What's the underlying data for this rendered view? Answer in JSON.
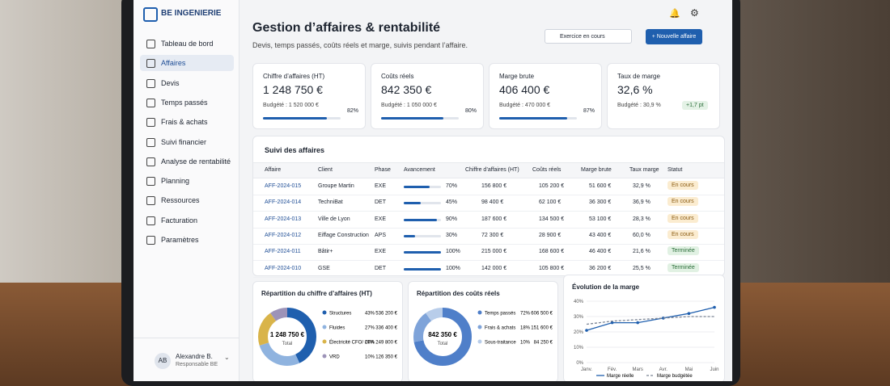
{
  "sidebar": {
    "brand": "BE INGENIERIE",
    "nav": [
      "Tableau de bord",
      "Affaires",
      "Devis",
      "Temps passés",
      "Frais & achats",
      "Suivi financier",
      "Analyse de rentabilité",
      "Planning",
      "Ressources",
      "Facturation",
      "Paramètres"
    ],
    "active": 1,
    "user": {
      "initials": "AB",
      "name": "Alexandre B.",
      "role": "Responsable BE"
    }
  },
  "header": {
    "title": "Gestion d’affaires & rentabilité",
    "subtitle": "Devis, temps passés, coûts réels et marge, suivis pendant l’affaire.",
    "select": "Exercice en cours",
    "button": "Nouvelle affaire"
  },
  "kpis": [
    {
      "label": "Chiffre d’affaires (HT)",
      "value": "1 248 750 €",
      "budget": "Budgété : 1 520 000 €",
      "progress": 82,
      "progress_label": "82%"
    },
    {
      "label": "Coûts réels",
      "value": "842 350 €",
      "budget": "Budgété : 1 050 000 €",
      "progress": 80,
      "progress_label": "80%"
    },
    {
      "label": "Marge brute",
      "value": "406 400 €",
      "budget": "Budgété : 470 000 €",
      "progress": 87,
      "progress_label": "87%"
    },
    {
      "label": "Taux de marge",
      "value": "32,6 %",
      "budget": "Budgété : 30,9 %",
      "badge": "+1,7 pt"
    }
  ],
  "table": {
    "title": "Suivi des affaires",
    "columns": [
      "Affaire",
      "Client",
      "Phase",
      "Avancement",
      "Chiffre d’affaires (HT)",
      "Coûts réels",
      "Marge brute",
      "Taux marge",
      "Statut"
    ],
    "rows": [
      {
        "id": "AFF-2024-015",
        "client": "Groupe Martin",
        "phase": "EXE",
        "progress": 70,
        "progress_label": "70%",
        "ca": "156 800 €",
        "costs": "105 200 €",
        "margin": "51 600 €",
        "rate": "32,9 %",
        "status": "En cours"
      },
      {
        "id": "AFF-2024-014",
        "client": "TechniBat",
        "phase": "DET",
        "progress": 45,
        "progress_label": "45%",
        "ca": "98 400 €",
        "costs": "62 100 €",
        "margin": "36 300 €",
        "rate": "36,9 %",
        "status": "En cours"
      },
      {
        "id": "AFF-2024-013",
        "client": "Ville de Lyon",
        "phase": "EXE",
        "progress": 90,
        "progress_label": "90%",
        "ca": "187 600 €",
        "costs": "134 500 €",
        "margin": "53 100 €",
        "rate": "28,3 %",
        "status": "En cours"
      },
      {
        "id": "AFF-2024-012",
        "client": "Eiffage Construction",
        "phase": "APS",
        "progress": 30,
        "progress_label": "30%",
        "ca": "72 300 €",
        "costs": "28 900 €",
        "margin": "43 400 €",
        "rate": "60,0 %",
        "status": "En cours"
      },
      {
        "id": "AFF-2024-011",
        "client": "Bâtir+",
        "phase": "EXE",
        "progress": 100,
        "progress_label": "100%",
        "ca": "215 000 €",
        "costs": "168 600 €",
        "margin": "46 400 €",
        "rate": "21,6 %",
        "status": "Terminée"
      },
      {
        "id": "AFF-2024-010",
        "client": "GSE",
        "phase": "DET",
        "progress": 100,
        "progress_label": "100%",
        "ca": "142 000 €",
        "costs": "105 800 €",
        "margin": "36 200 €",
        "rate": "25,5 %",
        "status": "Terminée"
      }
    ]
  },
  "donuts": [
    {
      "title": "Répartition du chiffre d’affaires (HT)",
      "total": "1 248 750 €",
      "total_label": "Total",
      "items": [
        {
          "name": "Structures",
          "value": 43,
          "value_label": "43%",
          "amount": "536 200 €",
          "color": "#1f5fae"
        },
        {
          "name": "Fluides",
          "value": 27,
          "value_label": "27%",
          "amount": "336 400 €",
          "color": "#8fb3df"
        },
        {
          "name": "Électricité CFO/ CFA",
          "value": 20,
          "value_label": "20%",
          "amount": "249 800 €",
          "color": "#d9b44a"
        },
        {
          "name": "VRD",
          "value": 10,
          "value_label": "10%",
          "amount": "126 350 €",
          "color": "#9d93b8"
        }
      ]
    },
    {
      "title": "Répartition des coûts réels",
      "total": "842 350 €",
      "total_label": "Total",
      "items": [
        {
          "name": "Temps passés",
          "value": 72,
          "value_label": "72%",
          "amount": "606 500 €",
          "color": "#4f7fc9"
        },
        {
          "name": "Frais & achats",
          "value": 18,
          "value_label": "18%",
          "amount": "151 600 €",
          "color": "#7ea3d9"
        },
        {
          "name": "Sous-traitance",
          "value": 10,
          "value_label": "10%",
          "amount": "84 250 €",
          "color": "#b8cdea"
        }
      ]
    }
  ],
  "line": {
    "type": "line",
    "title": "Évolution de la marge",
    "categories": [
      "Janv.",
      "Fév.",
      "Mars",
      "Avr.",
      "Mai",
      "Juin"
    ],
    "ylim": [
      0,
      40
    ],
    "yticks": [
      {
        "value": 0,
        "label": "0%"
      },
      {
        "value": 10,
        "label": "10%"
      },
      {
        "value": 20,
        "label": "20%"
      },
      {
        "value": 30,
        "label": "30%"
      },
      {
        "value": 40,
        "label": "40%"
      }
    ],
    "series": [
      {
        "name": "Marge réelle",
        "color": "#1f5fae",
        "values": [
          21,
          26,
          26,
          29,
          32,
          36
        ]
      },
      {
        "name": "Marge budgétée",
        "color": "#7b8494",
        "dashed": true,
        "values": [
          25,
          27,
          28,
          29,
          30,
          30
        ]
      }
    ]
  }
}
